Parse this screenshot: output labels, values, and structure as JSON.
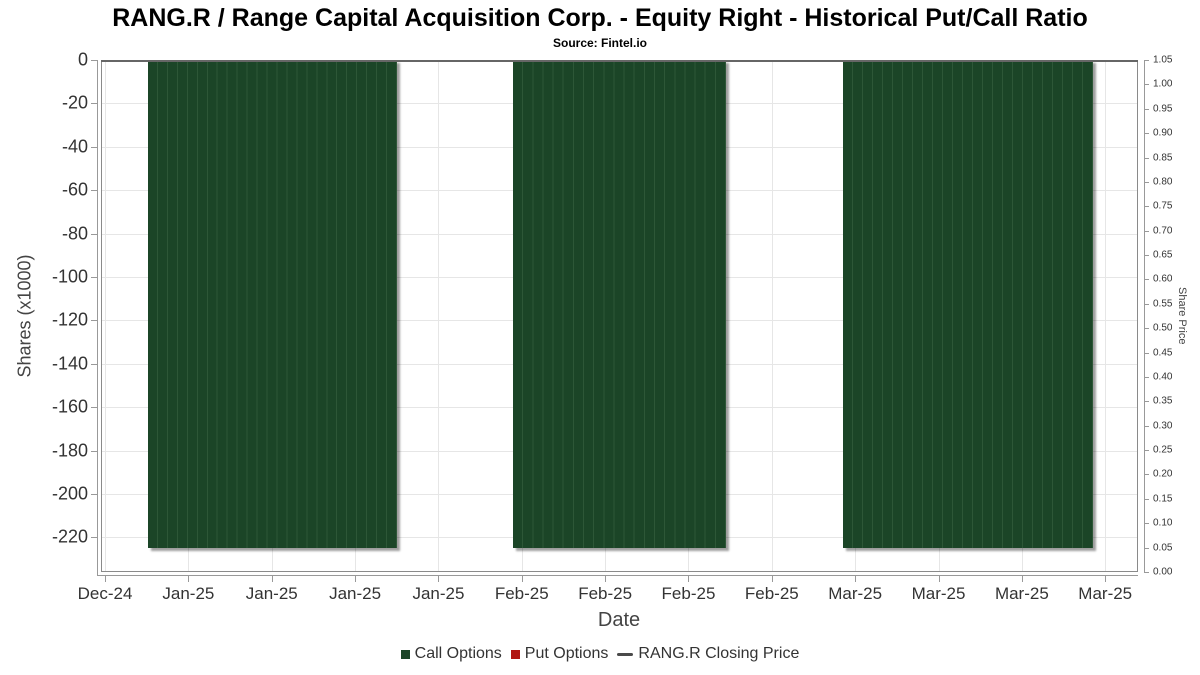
{
  "chart_data": {
    "type": "bar",
    "title": "RANG.R / Range Capital Acquisition Corp. - Equity Right - Historical Put/Call Ratio",
    "subtitle": "Source: Fintel.io",
    "xlabel": "Date",
    "ylabel_left": "Shares (x1000)",
    "ylabel_right": "Share Price",
    "x_tick_labels": [
      "Dec-24",
      "Jan-25",
      "Jan-25",
      "Jan-25",
      "Jan-25",
      "Feb-25",
      "Feb-25",
      "Feb-25",
      "Feb-25",
      "Mar-25",
      "Mar-25",
      "Mar-25",
      "Mar-25"
    ],
    "y_left_ticks": [
      0,
      -20,
      -40,
      -60,
      -80,
      -100,
      -120,
      -140,
      -160,
      -180,
      -200,
      -220
    ],
    "y_left_axis_min": -236,
    "y_right_ticks": [
      "1.05",
      "1.00",
      "0.95",
      "0.90",
      "0.85",
      "0.80",
      "0.75",
      "0.70",
      "0.65",
      "0.60",
      "0.55",
      "0.50",
      "0.45",
      "0.40",
      "0.35",
      "0.30",
      "0.25",
      "0.20",
      "0.15",
      "0.10",
      "0.05",
      "0.00"
    ],
    "y_right_range": [
      0,
      1.05
    ],
    "grid": true,
    "legend_position": "bottom",
    "series": [
      {
        "name": "Call Options",
        "type": "column",
        "color": "#1b4527",
        "separator_color": "#2d5737",
        "bar_value_thousands": -225,
        "bar_groups": [
          {
            "bars": 25,
            "x_start_frac": 0.0453,
            "x_end_frac": 0.2854
          },
          {
            "bars": 21,
            "x_start_frac": 0.3973,
            "x_end_frac": 0.6027
          },
          {
            "bars": 25,
            "x_start_frac": 0.7155,
            "x_end_frac": 0.9566
          }
        ]
      },
      {
        "name": "Put Options",
        "type": "column",
        "color": "#b01511",
        "values": []
      },
      {
        "name": "RANG.R Closing Price",
        "type": "line",
        "color": "#4a4a4a",
        "values": []
      }
    ]
  }
}
